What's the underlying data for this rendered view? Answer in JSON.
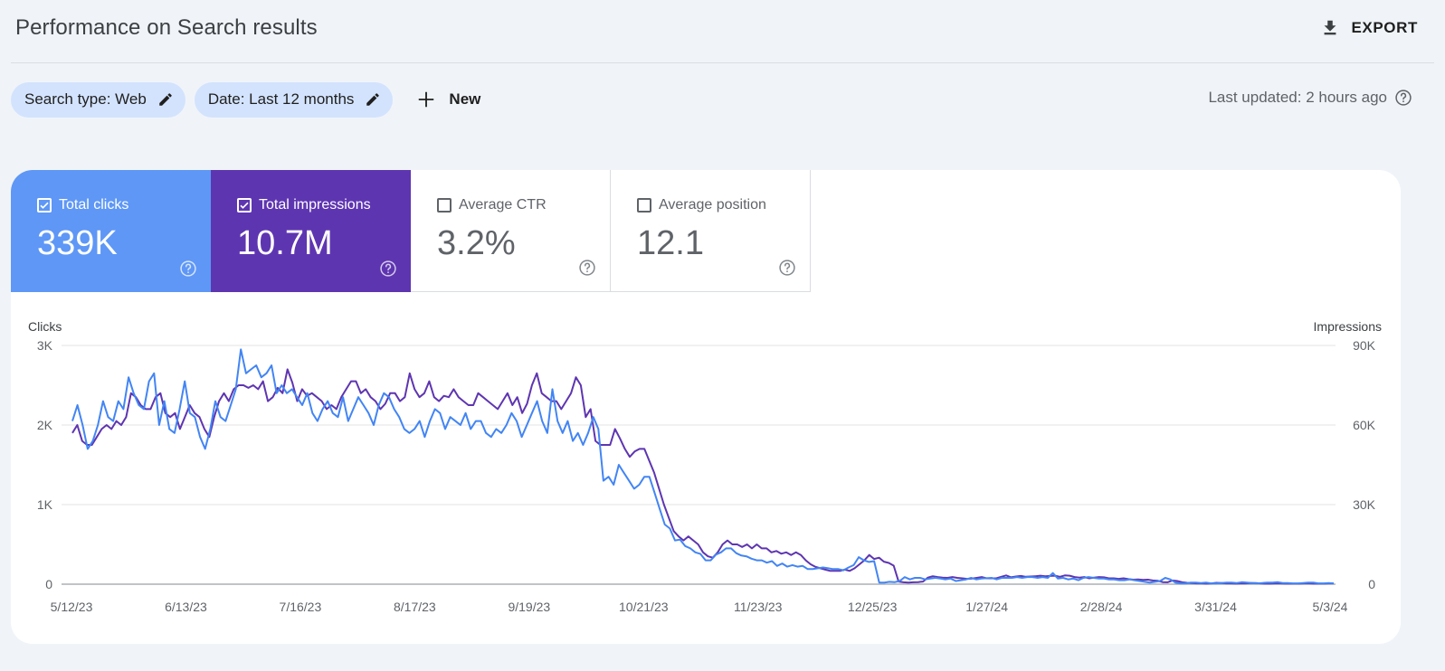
{
  "header": {
    "title": "Performance on Search results",
    "export_label": "EXPORT",
    "export_icon": "download-icon"
  },
  "filters": {
    "search_type_label": "Search type: Web",
    "date_label": "Date: Last 12 months",
    "new_label": "New",
    "last_updated": "Last updated: 2 hours ago"
  },
  "metrics": [
    {
      "label": "Total clicks",
      "value": "339K",
      "checked": true,
      "color": "#5e97f6"
    },
    {
      "label": "Total impressions",
      "value": "10.7M",
      "checked": true,
      "color": "#5e35b1"
    },
    {
      "label": "Average CTR",
      "value": "3.2%",
      "checked": false
    },
    {
      "label": "Average position",
      "value": "12.1",
      "checked": false
    }
  ],
  "chart_data": {
    "type": "line",
    "left_axis_title": "Clicks",
    "right_axis_title": "Impressions",
    "left_ticks": [
      "0",
      "1K",
      "2K",
      "3K"
    ],
    "right_ticks": [
      "0",
      "30K",
      "60K",
      "90K"
    ],
    "left_range": [
      0,
      3000
    ],
    "right_range": [
      0,
      90000
    ],
    "x_ticks": [
      "5/12/23",
      "6/13/23",
      "7/16/23",
      "8/17/23",
      "9/19/23",
      "10/21/23",
      "11/23/23",
      "12/25/23",
      "1/27/24",
      "2/28/24",
      "3/31/24",
      "5/3/24"
    ],
    "grid": true,
    "series": [
      {
        "name": "Clicks",
        "axis": "left",
        "color": "#4285f4",
        "values": [
          2050,
          2250,
          2000,
          1700,
          1800,
          2000,
          2300,
          2100,
          2050,
          2300,
          2200,
          2600,
          2400,
          2250,
          2200,
          2550,
          2650,
          2000,
          2300,
          1950,
          1900,
          2200,
          2550,
          2150,
          2100,
          1850,
          1700,
          1950,
          2300,
          2100,
          2050,
          2250,
          2450,
          2950,
          2650,
          2700,
          2750,
          2600,
          2650,
          2750,
          2400,
          2500,
          2400,
          2450,
          2350,
          2250,
          2400,
          2150,
          2050,
          2200,
          2300,
          2150,
          2100,
          2350,
          2050,
          2200,
          2350,
          2250,
          2150,
          2000,
          2250,
          2400,
          2350,
          2200,
          2100,
          1950,
          1900,
          1950,
          2050,
          1850,
          2050,
          2200,
          2150,
          1950,
          2100,
          2050,
          2000,
          2150,
          1950,
          2050,
          2050,
          1900,
          1850,
          1950,
          1900,
          2000,
          2150,
          2050,
          1850,
          2000,
          2150,
          2300,
          2050,
          1900,
          2450,
          2050,
          1900,
          2050,
          1800,
          1900,
          1750,
          1900,
          2100,
          1950,
          1300,
          1350,
          1250,
          1500,
          1400,
          1300,
          1200,
          1250,
          1350,
          1350,
          1150,
          950,
          750,
          700,
          550,
          560,
          480,
          450,
          400,
          380,
          300,
          300,
          370,
          400,
          450,
          450,
          390,
          360,
          350,
          320,
          300,
          300,
          270,
          290,
          230,
          260,
          220,
          240,
          220,
          230,
          190,
          190,
          200,
          210,
          200,
          190,
          190,
          175,
          210,
          240,
          340,
          300,
          280,
          290,
          20,
          20,
          30,
          25,
          40,
          90,
          60,
          80,
          80,
          60,
          70,
          80,
          70,
          60,
          70,
          40,
          50,
          60,
          80,
          60,
          70,
          75,
          80,
          60,
          80,
          80,
          80,
          90,
          80,
          90,
          90,
          80,
          90,
          80,
          140,
          70,
          80,
          60,
          70,
          50,
          80,
          90,
          80,
          70,
          70,
          60,
          60,
          50,
          50,
          60,
          50,
          40,
          30,
          20,
          30,
          40,
          80,
          60,
          20,
          10,
          10,
          20,
          20,
          15,
          20,
          10,
          10,
          15,
          20,
          20,
          15,
          25,
          20,
          15,
          10,
          15,
          20,
          20,
          25,
          15,
          15,
          10,
          10,
          15,
          20,
          20,
          10,
          10,
          15,
          10
        ]
      },
      {
        "name": "Impressions",
        "axis": "right",
        "color": "#5e35b1",
        "values": [
          57000,
          60000,
          54000,
          52500,
          52500,
          55500,
          58500,
          60000,
          58500,
          61500,
          60000,
          63000,
          72000,
          70500,
          67500,
          66000,
          66000,
          70500,
          72000,
          64500,
          63000,
          64500,
          58500,
          63000,
          67500,
          64500,
          63000,
          58500,
          55500,
          63000,
          69000,
          72000,
          69000,
          73500,
          75000,
          75000,
          74000,
          75000,
          73500,
          76500,
          69000,
          70500,
          74000,
          72000,
          81000,
          76000,
          69000,
          73500,
          71000,
          72000,
          70500,
          69000,
          66000,
          67500,
          66000,
          70500,
          73500,
          76500,
          76500,
          72000,
          73500,
          70500,
          69000,
          66000,
          68000,
          72000,
          72000,
          69000,
          70500,
          79500,
          73500,
          70500,
          72000,
          76500,
          70500,
          69000,
          71000,
          70500,
          73500,
          70500,
          69000,
          67500,
          67500,
          72000,
          70500,
          69000,
          67500,
          66000,
          69000,
          72000,
          67500,
          70500,
          64500,
          68000,
          75000,
          79500,
          72000,
          70500,
          69000,
          69000,
          66000,
          69000,
          72000,
          78000,
          75000,
          63000,
          66000,
          54000,
          52500,
          52500,
          52500,
          58500,
          55000,
          51000,
          48000,
          50000,
          51000,
          51000,
          46500,
          42000,
          36000,
          30000,
          25000,
          20000,
          18000,
          16500,
          18000,
          16500,
          15000,
          12000,
          10500,
          10000,
          12000,
          15000,
          16500,
          15000,
          15000,
          14000,
          15000,
          13500,
          15000,
          13500,
          13500,
          12000,
          12500,
          11500,
          12000,
          11000,
          12000,
          11000,
          9000,
          7500,
          6500,
          6000,
          5500,
          5000,
          5000,
          5000,
          5500,
          5000,
          6000,
          7500,
          9000,
          11000,
          9500,
          10000,
          8500,
          8000,
          7000,
          1000,
          700,
          600,
          700,
          800,
          1000,
          2500,
          3000,
          2700,
          2500,
          2400,
          2700,
          2400,
          2200,
          2000,
          2100,
          2400,
          2700,
          2200,
          2200,
          2200,
          2800,
          3300,
          2600,
          2900,
          3100,
          2800,
          2900,
          3000,
          3200,
          3000,
          3100,
          3200,
          2800,
          3300,
          3200,
          2700,
          2500,
          2700,
          2200,
          2500,
          2700,
          2600,
          2200,
          2200,
          2000,
          2200,
          1900,
          1700,
          1800,
          1600,
          1700,
          1400,
          1300,
          800,
          700,
          1400,
          1200,
          700,
          500,
          400,
          300,
          300,
          200,
          300,
          500,
          400,
          300,
          300,
          200,
          300,
          300,
          400,
          400,
          300,
          200,
          200,
          300,
          300,
          200,
          200,
          200,
          200,
          300,
          300,
          200,
          200,
          200,
          300,
          300
        ]
      }
    ]
  }
}
